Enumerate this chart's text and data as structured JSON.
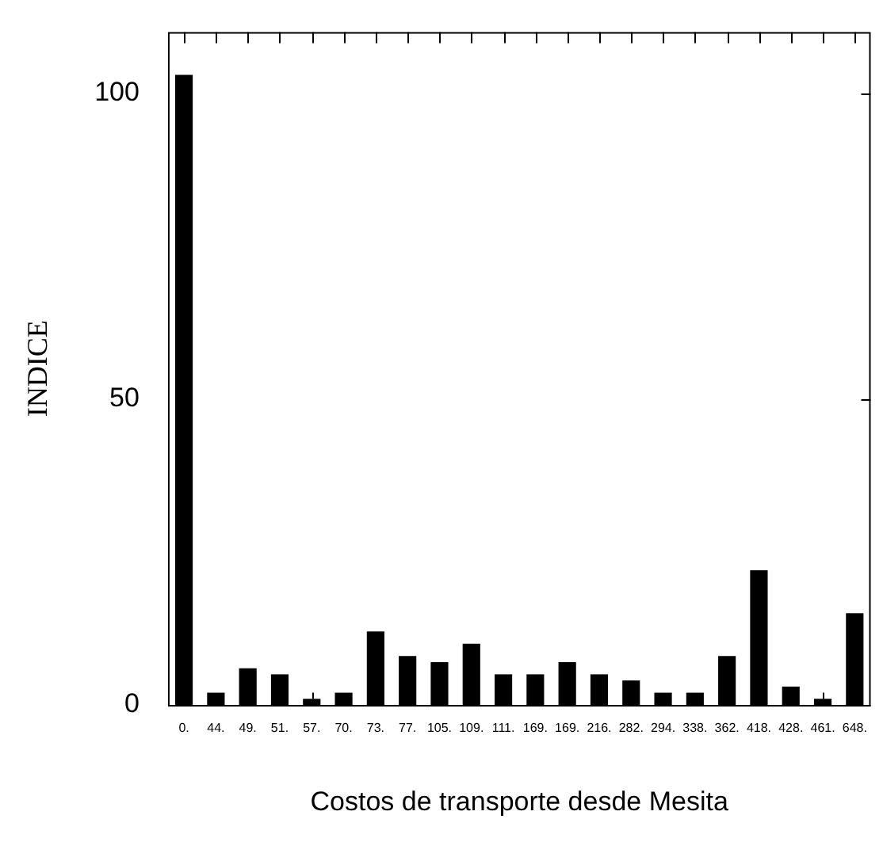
{
  "chart_data": {
    "type": "bar",
    "xlabel": "Costos de transporte desde Mesita",
    "ylabel": "INDICE",
    "categories": [
      "0.",
      "44.",
      "49.",
      "51.",
      "57.",
      "70.",
      "73.",
      "77.",
      "105.",
      "109.",
      "111.",
      "169.",
      "169.",
      "216.",
      "282.",
      "294.",
      "338.",
      "362.",
      "418.",
      "428.",
      "461.",
      "648."
    ],
    "values": [
      103,
      2,
      6,
      5,
      1,
      2,
      12,
      8,
      7,
      10,
      5,
      5,
      7,
      5,
      4,
      2,
      2,
      8,
      22,
      3,
      1,
      15
    ],
    "errors": [
      null,
      null,
      null,
      null,
      [
        1,
        2
      ],
      null,
      null,
      null,
      null,
      null,
      null,
      null,
      null,
      null,
      null,
      null,
      null,
      null,
      null,
      null,
      [
        1,
        2
      ],
      null
    ],
    "color": "#000000",
    "ylim": [
      0,
      110
    ],
    "yticks": [
      0,
      50,
      100
    ],
    "grid": false,
    "legend": false
  }
}
